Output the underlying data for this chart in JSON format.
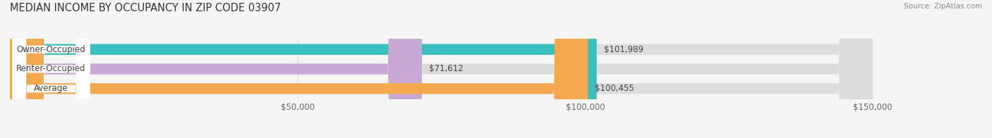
{
  "title": "MEDIAN INCOME BY OCCUPANCY IN ZIP CODE 03907",
  "source": "Source: ZipAtlas.com",
  "categories": [
    "Owner-Occupied",
    "Renter-Occupied",
    "Average"
  ],
  "values": [
    101989,
    71612,
    100455
  ],
  "labels": [
    "$101,989",
    "$71,612",
    "$100,455"
  ],
  "bar_colors": [
    "#3bbfbf",
    "#c9a8d4",
    "#f5a94e"
  ],
  "bar_background": "#dcdcdc",
  "xlim": [
    0,
    150000
  ],
  "xticks": [
    50000,
    100000,
    150000
  ],
  "xtick_labels": [
    "$50,000",
    "$100,000",
    "$150,000"
  ],
  "figsize": [
    14.06,
    1.96
  ],
  "dpi": 100,
  "title_fontsize": 10.5,
  "label_fontsize": 8.5,
  "bar_height": 0.55,
  "background_color": "#f5f5f5"
}
